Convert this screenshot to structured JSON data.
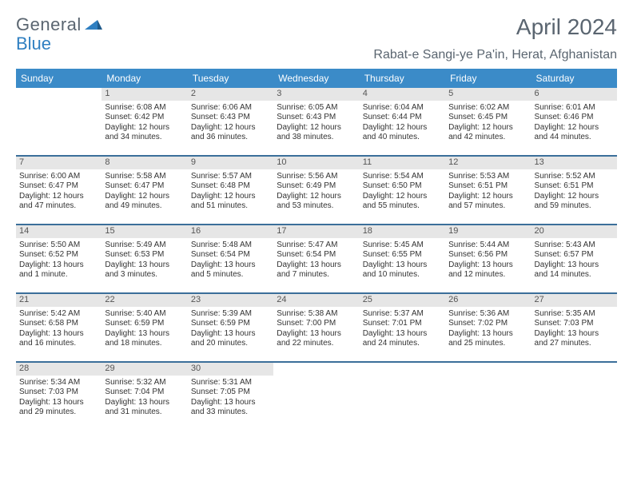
{
  "logo": {
    "text1": "General",
    "text2": "Blue"
  },
  "title": "April 2024",
  "location": "Rabat-e Sangi-ye Pa'in, Herat, Afghanistan",
  "day_names": [
    "Sunday",
    "Monday",
    "Tuesday",
    "Wednesday",
    "Thursday",
    "Friday",
    "Saturday"
  ],
  "colors": {
    "header_bg": "#3b8bc8",
    "header_text": "#ffffff",
    "daynum_bg": "#e6e6e6",
    "week_border": "#3b6f9a",
    "title_color": "#5a6570"
  },
  "weeks": [
    [
      {
        "num": "",
        "empty": true,
        "sunrise": "",
        "sunset": "",
        "day1": "",
        "day2": ""
      },
      {
        "num": "1",
        "sunrise": "Sunrise: 6:08 AM",
        "sunset": "Sunset: 6:42 PM",
        "day1": "Daylight: 12 hours",
        "day2": "and 34 minutes."
      },
      {
        "num": "2",
        "sunrise": "Sunrise: 6:06 AM",
        "sunset": "Sunset: 6:43 PM",
        "day1": "Daylight: 12 hours",
        "day2": "and 36 minutes."
      },
      {
        "num": "3",
        "sunrise": "Sunrise: 6:05 AM",
        "sunset": "Sunset: 6:43 PM",
        "day1": "Daylight: 12 hours",
        "day2": "and 38 minutes."
      },
      {
        "num": "4",
        "sunrise": "Sunrise: 6:04 AM",
        "sunset": "Sunset: 6:44 PM",
        "day1": "Daylight: 12 hours",
        "day2": "and 40 minutes."
      },
      {
        "num": "5",
        "sunrise": "Sunrise: 6:02 AM",
        "sunset": "Sunset: 6:45 PM",
        "day1": "Daylight: 12 hours",
        "day2": "and 42 minutes."
      },
      {
        "num": "6",
        "sunrise": "Sunrise: 6:01 AM",
        "sunset": "Sunset: 6:46 PM",
        "day1": "Daylight: 12 hours",
        "day2": "and 44 minutes."
      }
    ],
    [
      {
        "num": "7",
        "sunrise": "Sunrise: 6:00 AM",
        "sunset": "Sunset: 6:47 PM",
        "day1": "Daylight: 12 hours",
        "day2": "and 47 minutes."
      },
      {
        "num": "8",
        "sunrise": "Sunrise: 5:58 AM",
        "sunset": "Sunset: 6:47 PM",
        "day1": "Daylight: 12 hours",
        "day2": "and 49 minutes."
      },
      {
        "num": "9",
        "sunrise": "Sunrise: 5:57 AM",
        "sunset": "Sunset: 6:48 PM",
        "day1": "Daylight: 12 hours",
        "day2": "and 51 minutes."
      },
      {
        "num": "10",
        "sunrise": "Sunrise: 5:56 AM",
        "sunset": "Sunset: 6:49 PM",
        "day1": "Daylight: 12 hours",
        "day2": "and 53 minutes."
      },
      {
        "num": "11",
        "sunrise": "Sunrise: 5:54 AM",
        "sunset": "Sunset: 6:50 PM",
        "day1": "Daylight: 12 hours",
        "day2": "and 55 minutes."
      },
      {
        "num": "12",
        "sunrise": "Sunrise: 5:53 AM",
        "sunset": "Sunset: 6:51 PM",
        "day1": "Daylight: 12 hours",
        "day2": "and 57 minutes."
      },
      {
        "num": "13",
        "sunrise": "Sunrise: 5:52 AM",
        "sunset": "Sunset: 6:51 PM",
        "day1": "Daylight: 12 hours",
        "day2": "and 59 minutes."
      }
    ],
    [
      {
        "num": "14",
        "sunrise": "Sunrise: 5:50 AM",
        "sunset": "Sunset: 6:52 PM",
        "day1": "Daylight: 13 hours",
        "day2": "and 1 minute."
      },
      {
        "num": "15",
        "sunrise": "Sunrise: 5:49 AM",
        "sunset": "Sunset: 6:53 PM",
        "day1": "Daylight: 13 hours",
        "day2": "and 3 minutes."
      },
      {
        "num": "16",
        "sunrise": "Sunrise: 5:48 AM",
        "sunset": "Sunset: 6:54 PM",
        "day1": "Daylight: 13 hours",
        "day2": "and 5 minutes."
      },
      {
        "num": "17",
        "sunrise": "Sunrise: 5:47 AM",
        "sunset": "Sunset: 6:54 PM",
        "day1": "Daylight: 13 hours",
        "day2": "and 7 minutes."
      },
      {
        "num": "18",
        "sunrise": "Sunrise: 5:45 AM",
        "sunset": "Sunset: 6:55 PM",
        "day1": "Daylight: 13 hours",
        "day2": "and 10 minutes."
      },
      {
        "num": "19",
        "sunrise": "Sunrise: 5:44 AM",
        "sunset": "Sunset: 6:56 PM",
        "day1": "Daylight: 13 hours",
        "day2": "and 12 minutes."
      },
      {
        "num": "20",
        "sunrise": "Sunrise: 5:43 AM",
        "sunset": "Sunset: 6:57 PM",
        "day1": "Daylight: 13 hours",
        "day2": "and 14 minutes."
      }
    ],
    [
      {
        "num": "21",
        "sunrise": "Sunrise: 5:42 AM",
        "sunset": "Sunset: 6:58 PM",
        "day1": "Daylight: 13 hours",
        "day2": "and 16 minutes."
      },
      {
        "num": "22",
        "sunrise": "Sunrise: 5:40 AM",
        "sunset": "Sunset: 6:59 PM",
        "day1": "Daylight: 13 hours",
        "day2": "and 18 minutes."
      },
      {
        "num": "23",
        "sunrise": "Sunrise: 5:39 AM",
        "sunset": "Sunset: 6:59 PM",
        "day1": "Daylight: 13 hours",
        "day2": "and 20 minutes."
      },
      {
        "num": "24",
        "sunrise": "Sunrise: 5:38 AM",
        "sunset": "Sunset: 7:00 PM",
        "day1": "Daylight: 13 hours",
        "day2": "and 22 minutes."
      },
      {
        "num": "25",
        "sunrise": "Sunrise: 5:37 AM",
        "sunset": "Sunset: 7:01 PM",
        "day1": "Daylight: 13 hours",
        "day2": "and 24 minutes."
      },
      {
        "num": "26",
        "sunrise": "Sunrise: 5:36 AM",
        "sunset": "Sunset: 7:02 PM",
        "day1": "Daylight: 13 hours",
        "day2": "and 25 minutes."
      },
      {
        "num": "27",
        "sunrise": "Sunrise: 5:35 AM",
        "sunset": "Sunset: 7:03 PM",
        "day1": "Daylight: 13 hours",
        "day2": "and 27 minutes."
      }
    ],
    [
      {
        "num": "28",
        "sunrise": "Sunrise: 5:34 AM",
        "sunset": "Sunset: 7:03 PM",
        "day1": "Daylight: 13 hours",
        "day2": "and 29 minutes."
      },
      {
        "num": "29",
        "sunrise": "Sunrise: 5:32 AM",
        "sunset": "Sunset: 7:04 PM",
        "day1": "Daylight: 13 hours",
        "day2": "and 31 minutes."
      },
      {
        "num": "30",
        "sunrise": "Sunrise: 5:31 AM",
        "sunset": "Sunset: 7:05 PM",
        "day1": "Daylight: 13 hours",
        "day2": "and 33 minutes."
      },
      {
        "num": "",
        "empty": true,
        "sunrise": "",
        "sunset": "",
        "day1": "",
        "day2": ""
      },
      {
        "num": "",
        "empty": true,
        "sunrise": "",
        "sunset": "",
        "day1": "",
        "day2": ""
      },
      {
        "num": "",
        "empty": true,
        "sunrise": "",
        "sunset": "",
        "day1": "",
        "day2": ""
      },
      {
        "num": "",
        "empty": true,
        "sunrise": "",
        "sunset": "",
        "day1": "",
        "day2": ""
      }
    ]
  ]
}
